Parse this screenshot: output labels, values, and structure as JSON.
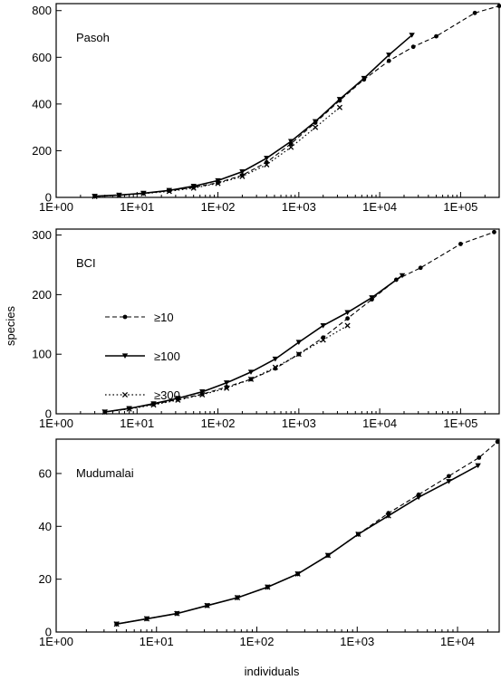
{
  "chart_data": [
    {
      "type": "line",
      "panel_label": "Pasoh",
      "x_scale": "log",
      "xlim": [
        1,
        300000
      ],
      "ylim": [
        0,
        830
      ],
      "x_ticks": [
        1,
        10,
        100,
        1000,
        10000,
        100000
      ],
      "x_tick_labels": [
        "1E+00",
        "1E+01",
        "1E+02",
        "1E+03",
        "1E+04",
        "1E+05"
      ],
      "y_ticks": [
        0,
        200,
        400,
        600,
        800
      ],
      "y_tick_labels": [
        "0",
        "200",
        "400",
        "600",
        "800"
      ],
      "grid": false,
      "series": [
        {
          "name": "≥10",
          "style": "dashed",
          "marker": "dot",
          "x": [
            3,
            6,
            12,
            25,
            50,
            100,
            200,
            400,
            800,
            1600,
            3200,
            6400,
            13000,
            26000,
            50000,
            150000,
            300000
          ],
          "y": [
            5,
            10,
            18,
            28,
            43,
            63,
            95,
            150,
            230,
            320,
            415,
            505,
            585,
            645,
            690,
            790,
            820
          ]
        },
        {
          "name": "≥100",
          "style": "solid",
          "marker": "triangle",
          "x": [
            3,
            6,
            12,
            25,
            50,
            100,
            200,
            400,
            800,
            1600,
            3200,
            6400,
            13000,
            25000
          ],
          "y": [
            5,
            10,
            18,
            30,
            48,
            72,
            110,
            168,
            240,
            325,
            420,
            510,
            610,
            695
          ]
        },
        {
          "name": "≥300",
          "style": "dotted",
          "marker": "x",
          "x": [
            3,
            6,
            12,
            25,
            50,
            100,
            200,
            400,
            800,
            1600,
            3200
          ],
          "y": [
            4,
            9,
            16,
            26,
            40,
            60,
            90,
            140,
            215,
            300,
            385
          ]
        }
      ]
    },
    {
      "type": "line",
      "panel_label": "BCI",
      "x_scale": "log",
      "xlim": [
        1,
        300000
      ],
      "ylim": [
        0,
        310
      ],
      "x_ticks": [
        1,
        10,
        100,
        1000,
        10000,
        100000
      ],
      "x_tick_labels": [
        "1E+00",
        "1E+01",
        "1E+02",
        "1E+03",
        "1E+04",
        "1E+05"
      ],
      "y_ticks": [
        0,
        100,
        200,
        300
      ],
      "y_tick_labels": [
        "0",
        "100",
        "200",
        "300"
      ],
      "grid": false,
      "series": [
        {
          "name": "≥10",
          "style": "dashed",
          "marker": "dot",
          "x": [
            4,
            8,
            16,
            32,
            64,
            128,
            256,
            512,
            1000,
            2000,
            4000,
            8000,
            16000,
            32000,
            100000,
            260000
          ],
          "y": [
            3,
            9,
            16,
            24,
            33,
            45,
            58,
            76,
            100,
            128,
            160,
            192,
            225,
            245,
            285,
            305
          ]
        },
        {
          "name": "≥100",
          "style": "solid",
          "marker": "triangle",
          "x": [
            4,
            8,
            16,
            32,
            64,
            128,
            256,
            512,
            1000,
            2000,
            4000,
            8000,
            19000
          ],
          "y": [
            3,
            9,
            17,
            26,
            37,
            52,
            70,
            92,
            120,
            148,
            170,
            195,
            232
          ]
        },
        {
          "name": "≥300",
          "style": "dotted",
          "marker": "x",
          "x": [
            4,
            8,
            16,
            32,
            64,
            128,
            256,
            512,
            1000,
            2000,
            4000
          ],
          "y": [
            3,
            8,
            15,
            23,
            32,
            43,
            58,
            78,
            100,
            124,
            148
          ]
        }
      ],
      "legend": {
        "placement": "center-left",
        "entries": [
          "≥10",
          "≥100",
          "≥300"
        ]
      }
    },
    {
      "type": "line",
      "panel_label": "Mudumalai",
      "x_scale": "log",
      "xlim": [
        1,
        26000
      ],
      "ylim": [
        0,
        73
      ],
      "x_ticks": [
        1,
        10,
        100,
        1000,
        10000
      ],
      "x_tick_labels": [
        "1E+00",
        "1E+01",
        "1E+02",
        "1E+03",
        "1E+04"
      ],
      "y_ticks": [
        0,
        20,
        40,
        60
      ],
      "y_tick_labels": [
        "0",
        "20",
        "40",
        "60"
      ],
      "grid": false,
      "series": [
        {
          "name": "≥10",
          "style": "dashed",
          "marker": "dot",
          "x": [
            4,
            8,
            16,
            32,
            64,
            128,
            256,
            512,
            1024,
            2048,
            4096,
            8192,
            16384,
            25000
          ],
          "y": [
            3,
            5,
            7,
            10,
            13,
            17,
            22,
            29,
            37,
            45,
            52,
            59,
            66,
            72
          ]
        },
        {
          "name": "≥100",
          "style": "solid",
          "marker": "triangle",
          "x": [
            4,
            8,
            16,
            32,
            64,
            128,
            256,
            512,
            1024,
            2048,
            4096,
            8192,
            16000
          ],
          "y": [
            3,
            5,
            7,
            10,
            13,
            17,
            22,
            29,
            37,
            44,
            51,
            57,
            63
          ]
        },
        {
          "name": "≥300",
          "style": "dotted",
          "marker": "x",
          "x": [
            4,
            8,
            16,
            32,
            64,
            128,
            256,
            512,
            1024,
            2048
          ],
          "y": [
            3,
            5,
            7,
            10,
            13,
            17,
            22,
            29,
            37,
            44
          ]
        }
      ]
    }
  ],
  "axes": {
    "xlabel": "individuals",
    "ylabel": "species"
  }
}
